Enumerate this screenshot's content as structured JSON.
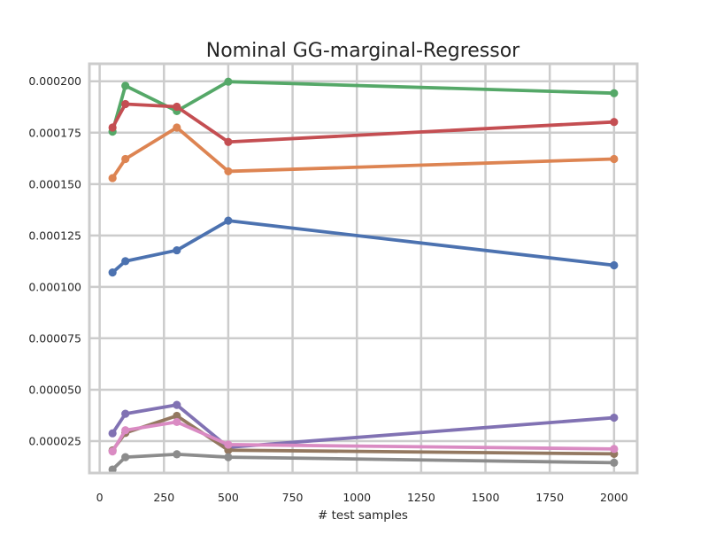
{
  "chart_data": {
    "type": "line",
    "title": "Nominal GG-marginal-Regressor",
    "xlabel": "# test samples",
    "ylabel": "",
    "xlim": [
      -40,
      2090
    ],
    "ylim": [
      9.5e-06,
      0.0002085
    ],
    "grid": true,
    "legend": "none",
    "x_ticks": [
      0,
      250,
      500,
      750,
      1000,
      1250,
      1500,
      1750,
      2000
    ],
    "x_tick_labels": [
      "0",
      "250",
      "500",
      "750",
      "1000",
      "1250",
      "1500",
      "1750",
      "2000"
    ],
    "y_ticks": [
      2.5e-05,
      5e-05,
      7.5e-05,
      0.0001,
      0.000125,
      0.00015,
      0.000175,
      0.0002
    ],
    "y_tick_labels": [
      "0.000025",
      "0.000050",
      "0.000075",
      "0.000100",
      "0.000125",
      "0.000150",
      "0.000175",
      "0.000200"
    ],
    "x": [
      50,
      100,
      300,
      500,
      2000
    ],
    "series": [
      {
        "color": "#4c72b0",
        "values": [
          0.000107,
          0.0001125,
          0.0001178,
          0.0001322,
          0.0001105
        ]
      },
      {
        "color": "#dd8452",
        "values": [
          0.0001529,
          0.0001622,
          0.0001775,
          0.0001562,
          0.0001622
        ]
      },
      {
        "color": "#55a868",
        "values": [
          0.0001755,
          0.0001978,
          0.0001855,
          0.0001998,
          0.0001942
        ]
      },
      {
        "color": "#c44e52",
        "values": [
          0.0001775,
          0.0001889,
          0.0001876,
          0.0001705,
          0.0001802
        ]
      },
      {
        "color": "#8172b3",
        "values": [
          2.88e-05,
          3.83e-05,
          4.26e-05,
          2.2e-05,
          3.64e-05
        ]
      },
      {
        "color": "#937860",
        "values": [
          2.05e-05,
          2.9e-05,
          3.73e-05,
          2.06e-05,
          1.88e-05
        ]
      },
      {
        "color": "#da8bc3",
        "values": [
          2e-05,
          3.03e-05,
          3.43e-05,
          2.33e-05,
          2.12e-05
        ]
      },
      {
        "color": "#8c8c8c",
        "values": [
          1.12e-05,
          1.72e-05,
          1.86e-05,
          1.72e-05,
          1.45e-05
        ]
      }
    ]
  }
}
